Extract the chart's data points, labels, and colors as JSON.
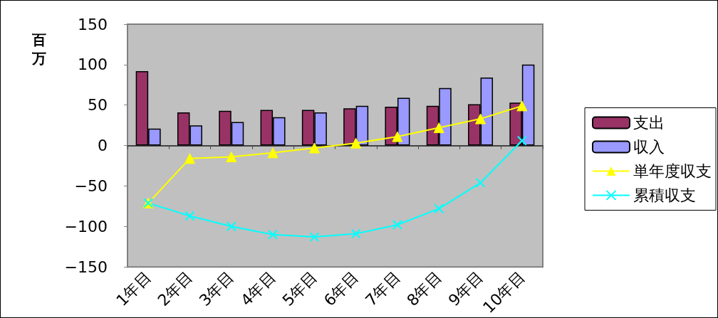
{
  "chart_data": {
    "type": "bar",
    "ylabel": "百万",
    "categories": [
      "1年目",
      "2年目",
      "3年目",
      "4年目",
      "5年目",
      "6年目",
      "7年目",
      "8年目",
      "9年目",
      "10年目"
    ],
    "series": [
      {
        "name": "支出",
        "color": "#993366",
        "values": [
          92,
          41,
          43,
          44,
          44,
          46,
          48,
          49,
          51,
          53
        ]
      },
      {
        "name": "収入",
        "color": "#9999ff",
        "values": [
          21,
          25,
          29,
          35,
          41,
          49,
          59,
          71,
          84,
          100
        ]
      },
      {
        "name": "単年度収支",
        "type": "line",
        "color": "#ffff00",
        "marker": "triangle",
        "values": [
          -71,
          -16,
          -14,
          -9,
          -3,
          3,
          11,
          22,
          33,
          49
        ]
      },
      {
        "name": "累積収支",
        "type": "line",
        "color": "#00ffff",
        "marker": "cross",
        "values": [
          -71,
          -87,
          -100,
          -110,
          -113,
          -109,
          -98,
          -78,
          -46,
          6
        ]
      }
    ],
    "ylim": [
      -150,
      150
    ],
    "yticks": [
      -150,
      -100,
      -50,
      0,
      50,
      100,
      150
    ],
    "legend": "right"
  }
}
